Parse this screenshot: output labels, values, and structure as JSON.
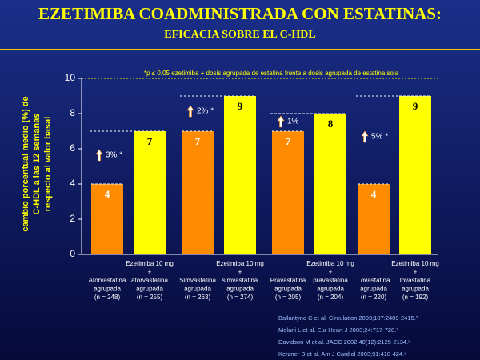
{
  "chart_data": {
    "type": "bar",
    "title": "EZETIMIBA COADMINISTRADA CON ESTATINAS:",
    "subtitle": "EFICACIA SOBRE EL C-HDL",
    "ylabel": [
      "cambio porcentual medio (%) de",
      "C-HDL a las 12 semanas",
      "respecto al valor basal"
    ],
    "note": "*p ≤ 0,05 ezetimiba + dosis agrupada de estatina frente a dosis agrupada de estatina sola",
    "categories": [
      [
        "Atorvastatina",
        "agrupada",
        "(n = 248)"
      ],
      [
        "Ezetimiba 10 mg",
        "+",
        "atorvastatina",
        "agrupada",
        "(n = 255)"
      ],
      [
        "Simvastatina",
        "agrupada",
        "(n = 263)"
      ],
      [
        "Ezetimiba 10 mg",
        "+",
        "simvastatina",
        "agrupada",
        "(n = 274)"
      ],
      [
        "Pravastatina",
        "agrupada",
        "(n = 205)"
      ],
      [
        "Ezetimiba 10 mg",
        "+",
        "pravastatina",
        "agrupada",
        "(n = 204)"
      ],
      [
        "Lovastatina",
        "agrupada",
        "(n = 220)"
      ],
      [
        "Ezetimiba 10 mg",
        "+",
        "lovastatina",
        "agrupada",
        "(n = 192)"
      ]
    ],
    "values": [
      4,
      7,
      7,
      9,
      7,
      8,
      4,
      9
    ],
    "colors": [
      "#ff8c00",
      "#ffff00",
      "#ff8c00",
      "#ffff00",
      "#ff8c00",
      "#ffff00",
      "#ff8c00",
      "#ffff00"
    ],
    "annotations": [
      "3% *",
      "2% *",
      "1%",
      "5% *"
    ],
    "ylim": [
      0,
      10
    ],
    "yticks": [
      0,
      2,
      4,
      6,
      8,
      10
    ],
    "references": [
      "Ballantyne C et al. Circulation 2003;107:2409-2415.²",
      "Melani L et al. Eur Heart J 2003;24:717-728.³",
      "Davidson M et al. JACC 2002;40(12):2125-2134.⁵",
      "Kerzner B et al. Am J Cardiol 2003;91:418-424.⁶"
    ]
  }
}
